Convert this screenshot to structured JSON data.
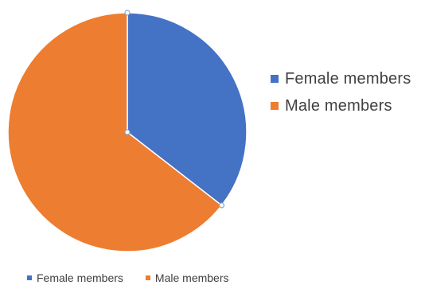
{
  "chart_data": {
    "type": "pie",
    "categories": [
      "Female members",
      "Male members"
    ],
    "values": [
      35.5,
      64.5
    ],
    "colors": [
      "#4472C4",
      "#ED7D31"
    ],
    "legend_placement": [
      "right",
      "bottom"
    ]
  },
  "legend": {
    "items": [
      {
        "label": "Female members",
        "color": "#4472C4"
      },
      {
        "label": "Male members",
        "color": "#ED7D31"
      }
    ]
  }
}
